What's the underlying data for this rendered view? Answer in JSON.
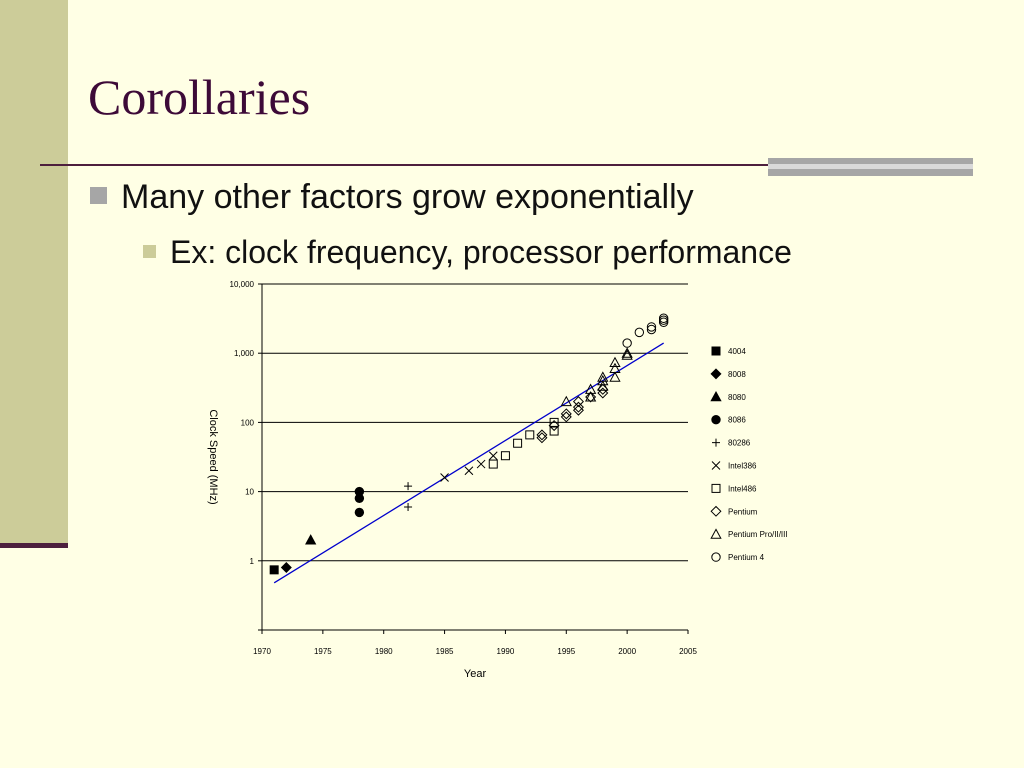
{
  "slide": {
    "title": "Corollaries",
    "bullet_1": "Many other factors grow exponentially",
    "bullet_2": "Ex: clock frequency, processor performance"
  },
  "colors": {
    "accent": "#3d0a38",
    "band": "#cccc99",
    "trend": "#0000cc"
  },
  "chart_data": {
    "type": "scatter",
    "xlabel": "Year",
    "ylabel": "Clock Speed (MHz)",
    "xlim": [
      1970,
      2005
    ],
    "ylim": [
      0.1,
      10000
    ],
    "yscale": "log",
    "x_ticks": [
      1970,
      1975,
      1980,
      1985,
      1990,
      1995,
      2000,
      2005
    ],
    "y_ticks": [
      {
        "value": 1,
        "label": "1"
      },
      {
        "value": 10,
        "label": "10"
      },
      {
        "value": 100,
        "label": "100"
      },
      {
        "value": 1000,
        "label": "1,000"
      },
      {
        "value": 10000,
        "label": "10,000"
      }
    ],
    "grid": "horizontal",
    "legend": "right",
    "trend_line": {
      "from": [
        1971,
        0.48
      ],
      "to": [
        2003,
        1400
      ]
    },
    "series": [
      {
        "name": "4004",
        "marker": "square-filled",
        "points": [
          [
            1971,
            0.74
          ]
        ]
      },
      {
        "name": "8008",
        "marker": "diamond-filled",
        "points": [
          [
            1972,
            0.8
          ]
        ]
      },
      {
        "name": "8080",
        "marker": "triangle-filled",
        "points": [
          [
            1974,
            2
          ]
        ]
      },
      {
        "name": "8086",
        "marker": "circle-filled",
        "points": [
          [
            1978,
            5
          ],
          [
            1978,
            8
          ],
          [
            1978,
            10
          ]
        ]
      },
      {
        "name": "80286",
        "marker": "plus",
        "points": [
          [
            1982,
            6
          ],
          [
            1982,
            12
          ]
        ]
      },
      {
        "name": "Intel386",
        "marker": "x",
        "points": [
          [
            1985,
            16
          ],
          [
            1987,
            20
          ],
          [
            1988,
            25
          ],
          [
            1989,
            33
          ]
        ]
      },
      {
        "name": "Intel486",
        "marker": "square-open",
        "points": [
          [
            1989,
            25
          ],
          [
            1990,
            33
          ],
          [
            1991,
            50
          ],
          [
            1992,
            66
          ],
          [
            1994,
            75
          ],
          [
            1994,
            100
          ]
        ]
      },
      {
        "name": "Pentium",
        "marker": "diamond-open",
        "points": [
          [
            1993,
            60
          ],
          [
            1993,
            66
          ],
          [
            1994,
            90
          ],
          [
            1995,
            120
          ],
          [
            1995,
            133
          ],
          [
            1996,
            150
          ],
          [
            1996,
            166
          ],
          [
            1996,
            200
          ],
          [
            1997,
            233
          ],
          [
            1998,
            266
          ],
          [
            1998,
            300
          ]
        ]
      },
      {
        "name": "Pentium Pro/II/III",
        "marker": "triangle-open",
        "points": [
          [
            1995,
            200
          ],
          [
            1997,
            233
          ],
          [
            1997,
            300
          ],
          [
            1998,
            333
          ],
          [
            1998,
            400
          ],
          [
            1998,
            450
          ],
          [
            1999,
            450
          ],
          [
            1999,
            600
          ],
          [
            1999,
            733
          ],
          [
            2000,
            933
          ],
          [
            2000,
            1000
          ]
        ]
      },
      {
        "name": "Pentium 4",
        "marker": "circle-open",
        "points": [
          [
            2000,
            1400
          ],
          [
            2001,
            2000
          ],
          [
            2002,
            2200
          ],
          [
            2002,
            2400
          ],
          [
            2003,
            2800
          ],
          [
            2003,
            3000
          ],
          [
            2003,
            3200
          ]
        ]
      }
    ]
  }
}
